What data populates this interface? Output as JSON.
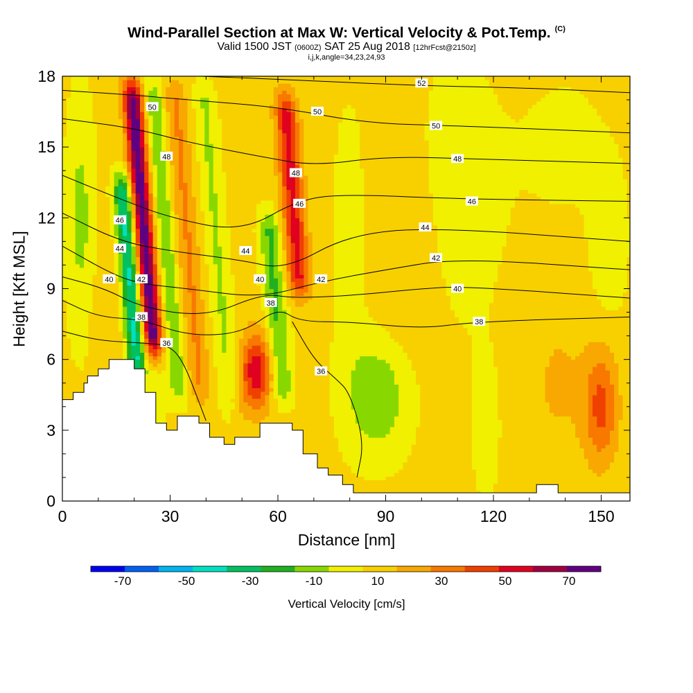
{
  "title": {
    "main": "Wind-Parallel Section at Max W: Vertical Velocity & Pot.Temp.",
    "main_suffix": "(C)",
    "valid_prefix": "Valid 1500 JST",
    "valid_z": "(0600Z)",
    "valid_date": "SAT 25 Aug 2018",
    "fcst": "[12hrFcst@2150z]",
    "indices": "i,j,k,angle=34,23,24,93"
  },
  "chart_data": {
    "type": "heatmap",
    "xlabel": "Distance [nm]",
    "ylabel": "Height [Kft MSL]",
    "xlim": [
      0,
      158
    ],
    "ylim": [
      0,
      18
    ],
    "xticks": [
      0,
      30,
      60,
      90,
      120,
      150
    ],
    "yticks": [
      0,
      3,
      6,
      9,
      12,
      15,
      18
    ],
    "colorbar": {
      "label": "Vertical Velocity [cm/s]",
      "bins": [
        -80,
        -70,
        -60,
        -50,
        -40,
        -30,
        -20,
        -10,
        0,
        10,
        20,
        30,
        40,
        50,
        60,
        70,
        80
      ],
      "colors": [
        "#0000f0",
        "#0060f0",
        "#00b4f0",
        "#00e0c0",
        "#00c060",
        "#20b020",
        "#88d800",
        "#f0f000",
        "#f8d000",
        "#f8a800",
        "#f87800",
        "#f04000",
        "#e00020",
        "#a00040",
        "#600080"
      ],
      "tick_labels": [
        "-70",
        "-50",
        "-30",
        "-10",
        "10",
        "30",
        "50",
        "70"
      ]
    },
    "terrain": [
      [
        0,
        4.3
      ],
      [
        3,
        4.3
      ],
      [
        3,
        4.6
      ],
      [
        6,
        4.6
      ],
      [
        6,
        5.0
      ],
      [
        7,
        5.0
      ],
      [
        7,
        5.3
      ],
      [
        10,
        5.3
      ],
      [
        10,
        5.6
      ],
      [
        13,
        5.6
      ],
      [
        13,
        6.0
      ],
      [
        20,
        6.0
      ],
      [
        20,
        5.6
      ],
      [
        23,
        5.6
      ],
      [
        23,
        4.6
      ],
      [
        26,
        4.6
      ],
      [
        26,
        3.3
      ],
      [
        29,
        3.3
      ],
      [
        29,
        3.0
      ],
      [
        32,
        3.0
      ],
      [
        32,
        3.6
      ],
      [
        38,
        3.6
      ],
      [
        38,
        3.3
      ],
      [
        41,
        3.3
      ],
      [
        41,
        2.7
      ],
      [
        45,
        2.7
      ],
      [
        45,
        2.4
      ],
      [
        48,
        2.4
      ],
      [
        48,
        2.7
      ],
      [
        55,
        2.7
      ],
      [
        55,
        3.3
      ],
      [
        64,
        3.3
      ],
      [
        64,
        3.0
      ],
      [
        67,
        3.0
      ],
      [
        67,
        2.0
      ],
      [
        71,
        2.0
      ],
      [
        71,
        1.4
      ],
      [
        74,
        1.4
      ],
      [
        74,
        1.1
      ],
      [
        78,
        1.1
      ],
      [
        78,
        0.7
      ],
      [
        81,
        0.7
      ],
      [
        81,
        0.35
      ],
      [
        132,
        0.35
      ],
      [
        132,
        0.7
      ],
      [
        138,
        0.7
      ],
      [
        138,
        0.35
      ],
      [
        158,
        0.35
      ],
      [
        158,
        0
      ],
      [
        0,
        0
      ]
    ],
    "theta_contours": [
      {
        "label": "52",
        "pts": [
          [
            0,
            18.2
          ],
          [
            40,
            18.0
          ],
          [
            70,
            17.8
          ],
          [
            100,
            17.6
          ],
          [
            130,
            17.5
          ],
          [
            158,
            17.3
          ]
        ]
      },
      {
        "label": "50",
        "pts": [
          [
            0,
            17.4
          ],
          [
            20,
            17.2
          ],
          [
            35,
            17.0
          ],
          [
            60,
            16.7
          ],
          [
            85,
            16.0
          ],
          [
            110,
            15.9
          ],
          [
            158,
            15.6
          ]
        ]
      },
      {
        "label": "48",
        "pts": [
          [
            0,
            16.2
          ],
          [
            20,
            15.8
          ],
          [
            35,
            15.2
          ],
          [
            55,
            14.6
          ],
          [
            70,
            14.2
          ],
          [
            90,
            14.6
          ],
          [
            115,
            14.5
          ],
          [
            158,
            14.3
          ]
        ]
      },
      {
        "label": "46",
        "pts": [
          [
            0,
            13.8
          ],
          [
            16,
            12.8
          ],
          [
            30,
            12.0
          ],
          [
            50,
            11.4
          ],
          [
            66,
            12.8
          ],
          [
            80,
            13.0
          ],
          [
            110,
            12.8
          ],
          [
            158,
            12.7
          ]
        ]
      },
      {
        "label": "44",
        "pts": [
          [
            0,
            12.2
          ],
          [
            16,
            11.0
          ],
          [
            30,
            10.6
          ],
          [
            50,
            10.2
          ],
          [
            62,
            9.8
          ],
          [
            80,
            11.3
          ],
          [
            104,
            11.6
          ],
          [
            158,
            11.0
          ]
        ]
      },
      {
        "label": "42",
        "pts": [
          [
            0,
            10.8
          ],
          [
            14,
            9.6
          ],
          [
            22,
            9.2
          ],
          [
            35,
            9.0
          ],
          [
            55,
            8.6
          ],
          [
            72,
            9.3
          ],
          [
            90,
            9.8
          ],
          [
            110,
            10.3
          ],
          [
            158,
            9.8
          ]
        ]
      },
      {
        "label": "40",
        "pts": [
          [
            0,
            9.5
          ],
          [
            12,
            9.0
          ],
          [
            22,
            8.2
          ],
          [
            40,
            7.8
          ],
          [
            56,
            8.8
          ],
          [
            64,
            8.6
          ],
          [
            80,
            8.7
          ],
          [
            100,
            9.0
          ],
          [
            112,
            9.1
          ],
          [
            158,
            8.6
          ]
        ]
      },
      {
        "label": "38",
        "pts": [
          [
            0,
            8.5
          ],
          [
            10,
            7.8
          ],
          [
            22,
            7.7
          ],
          [
            35,
            7.0
          ],
          [
            50,
            7.1
          ],
          [
            60,
            8.2
          ],
          [
            66,
            7.6
          ],
          [
            80,
            7.6
          ],
          [
            100,
            7.3
          ],
          [
            115,
            7.6
          ],
          [
            158,
            7.8
          ]
        ]
      },
      {
        "label": "36",
        "pts": [
          [
            0,
            7.2
          ],
          [
            10,
            6.8
          ],
          [
            22,
            6.7
          ],
          [
            30,
            6.6
          ],
          [
            34,
            5.8
          ],
          [
            38,
            4.2
          ],
          [
            40,
            3.4
          ]
        ]
      },
      {
        "label": "36",
        "pts": [
          [
            64,
            7.6
          ],
          [
            70,
            6.0
          ],
          [
            76,
            5.2
          ],
          [
            80,
            4.6
          ],
          [
            84,
            2.5
          ],
          [
            82,
            1.0
          ]
        ]
      }
    ],
    "contour_labels": [
      {
        "text": "52",
        "x": 100,
        "y": 17.7
      },
      {
        "text": "50",
        "x": 25,
        "y": 16.7
      },
      {
        "text": "50",
        "x": 71,
        "y": 16.5
      },
      {
        "text": "50",
        "x": 104,
        "y": 15.9
      },
      {
        "text": "48",
        "x": 29,
        "y": 14.6
      },
      {
        "text": "48",
        "x": 65,
        "y": 13.9
      },
      {
        "text": "48",
        "x": 110,
        "y": 14.5
      },
      {
        "text": "46",
        "x": 66,
        "y": 12.6
      },
      {
        "text": "46",
        "x": 114,
        "y": 12.7
      },
      {
        "text": "46",
        "x": 16,
        "y": 11.9
      },
      {
        "text": "44",
        "x": 16,
        "y": 10.7
      },
      {
        "text": "44",
        "x": 51,
        "y": 10.6
      },
      {
        "text": "44",
        "x": 101,
        "y": 11.6
      },
      {
        "text": "42",
        "x": 22,
        "y": 9.4
      },
      {
        "text": "42",
        "x": 72,
        "y": 9.4
      },
      {
        "text": "42",
        "x": 104,
        "y": 10.3
      },
      {
        "text": "40",
        "x": 13,
        "y": 9.4
      },
      {
        "text": "40",
        "x": 55,
        "y": 9.4
      },
      {
        "text": "40",
        "x": 110,
        "y": 9.0
      },
      {
        "text": "38",
        "x": 22,
        "y": 7.8
      },
      {
        "text": "38",
        "x": 58,
        "y": 8.4
      },
      {
        "text": "38",
        "x": 116,
        "y": 7.6
      },
      {
        "text": "36",
        "x": 29,
        "y": 6.7
      },
      {
        "text": "36",
        "x": 72,
        "y": 5.5
      }
    ]
  }
}
